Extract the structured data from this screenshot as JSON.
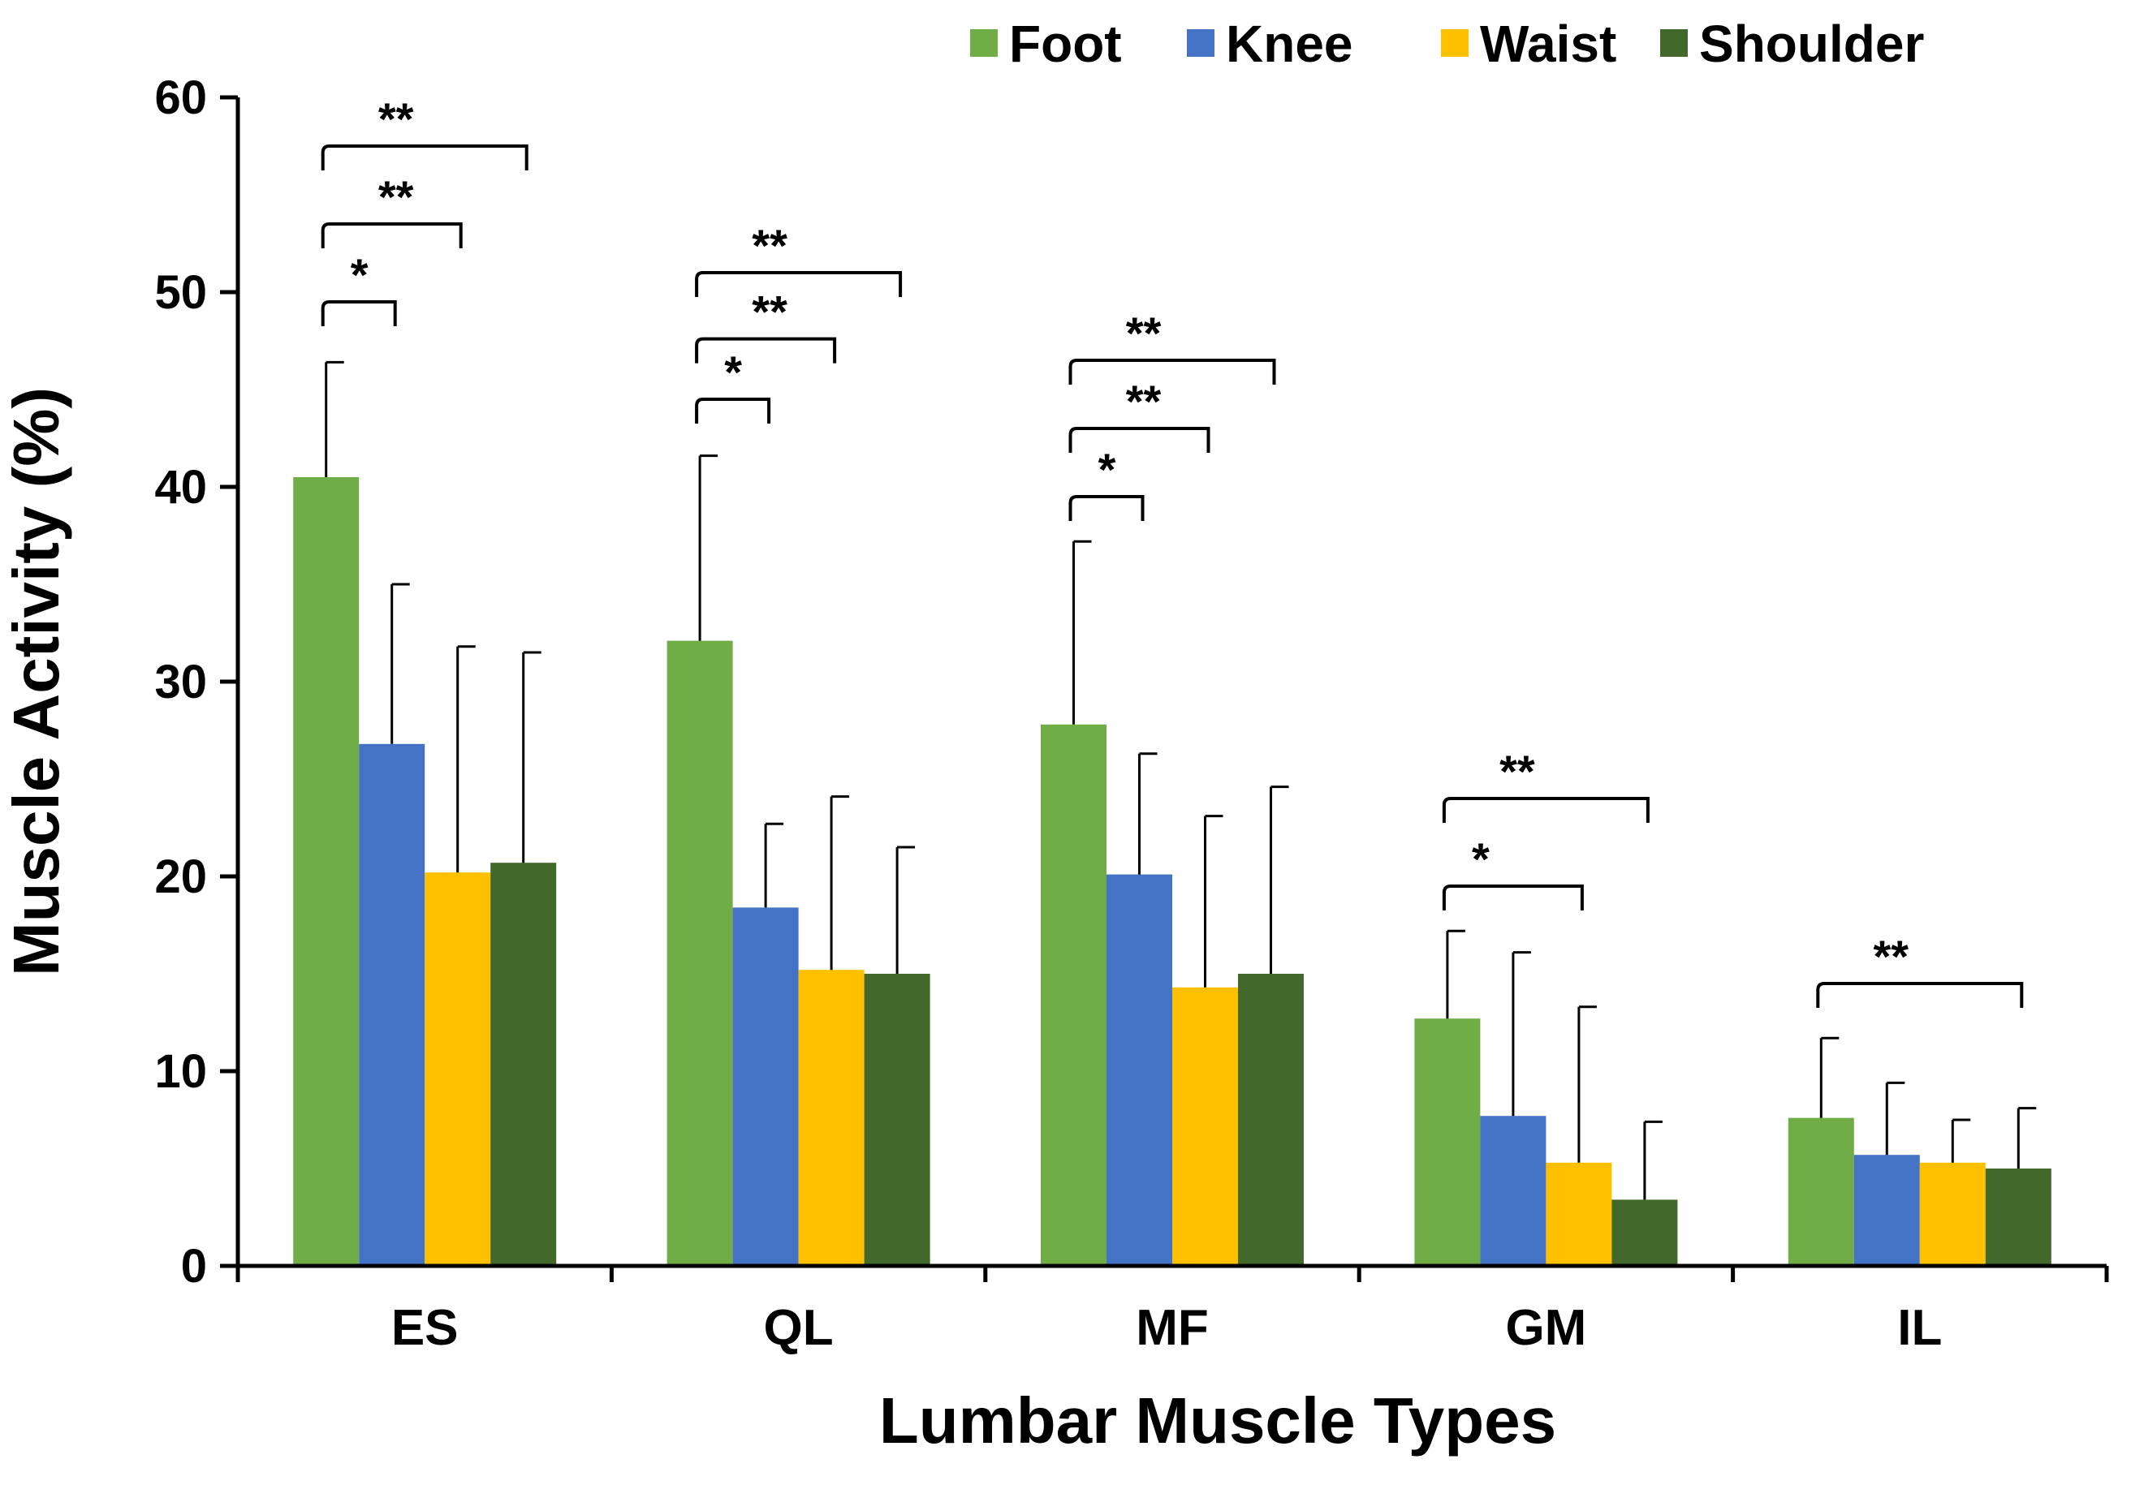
{
  "chart_data": {
    "type": "bar",
    "title": "",
    "xlabel": "Lumbar Muscle Types",
    "ylabel": "Muscle Activity (%)",
    "ylim": [
      0,
      60
    ],
    "yticks": [
      "0",
      "10",
      "20",
      "30",
      "40",
      "50",
      "60"
    ],
    "grid": false,
    "legend_position": "top-right",
    "categories": [
      "ES",
      "QL",
      "MF",
      "GM",
      "IL"
    ],
    "series": [
      {
        "name": "Foot",
        "color": "#70AD47",
        "values": [
          40.5,
          32.1,
          27.8,
          12.7,
          7.6
        ],
        "errors": [
          5.9,
          9.5,
          9.4,
          4.5,
          4.1
        ]
      },
      {
        "name": "Knee",
        "color": "#4472C4",
        "values": [
          26.8,
          18.4,
          20.1,
          7.7,
          5.7
        ],
        "errors": [
          8.2,
          4.3,
          6.2,
          8.4,
          3.7
        ]
      },
      {
        "name": "Waist",
        "color": "#FFC000",
        "values": [
          20.2,
          15.2,
          14.3,
          5.3,
          5.3
        ],
        "errors": [
          11.6,
          8.9,
          8.8,
          8.0,
          2.2
        ]
      },
      {
        "name": "Shoulder",
        "color": "#43682B",
        "values": [
          20.7,
          15.0,
          15.0,
          3.4,
          5.0
        ],
        "errors": [
          10.8,
          6.5,
          9.6,
          4.0,
          3.1
        ]
      }
    ],
    "significance": [
      {
        "category": "ES",
        "from": "Foot",
        "to": "Knee",
        "label": "*",
        "y": 49.5
      },
      {
        "category": "ES",
        "from": "Foot",
        "to": "Waist",
        "label": "**",
        "y": 53.5
      },
      {
        "category": "ES",
        "from": "Foot",
        "to": "Shoulder",
        "label": "**",
        "y": 57.5
      },
      {
        "category": "QL",
        "from": "Foot",
        "to": "Knee",
        "label": "*",
        "y": 44.5
      },
      {
        "category": "QL",
        "from": "Foot",
        "to": "Waist",
        "label": "**",
        "y": 47.6
      },
      {
        "category": "QL",
        "from": "Foot",
        "to": "Shoulder",
        "label": "**",
        "y": 51.0
      },
      {
        "category": "MF",
        "from": "Foot",
        "to": "Knee",
        "label": "*",
        "y": 39.5
      },
      {
        "category": "MF",
        "from": "Foot",
        "to": "Waist",
        "label": "**",
        "y": 43.0
      },
      {
        "category": "MF",
        "from": "Foot",
        "to": "Shoulder",
        "label": "**",
        "y": 46.5
      },
      {
        "category": "GM",
        "from": "Foot",
        "to": "Waist",
        "label": "*",
        "y": 19.5
      },
      {
        "category": "GM",
        "from": "Foot",
        "to": "Shoulder",
        "label": "**",
        "y": 24.0
      },
      {
        "category": "IL",
        "from": "Foot",
        "to": "Shoulder",
        "label": "**",
        "y": 14.5
      }
    ]
  }
}
